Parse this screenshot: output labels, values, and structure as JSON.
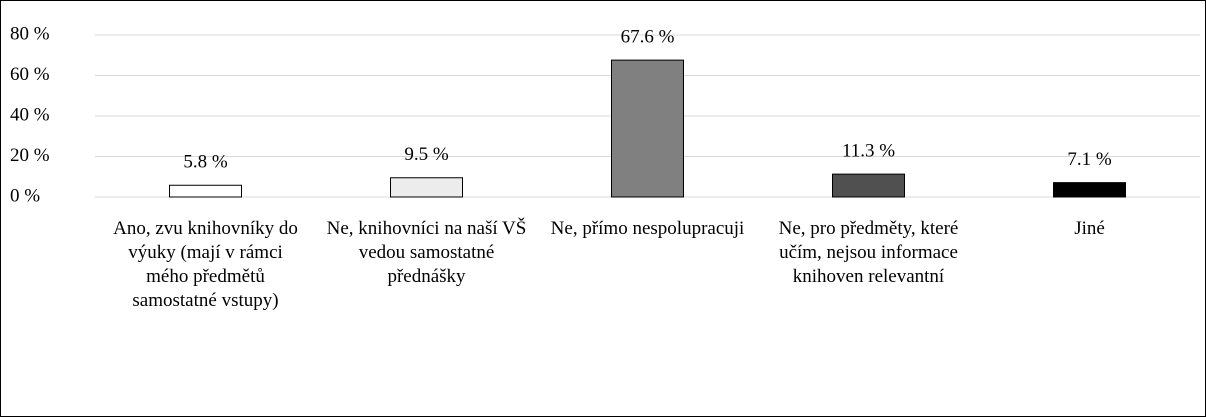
{
  "chart_data": {
    "type": "bar",
    "categories": [
      "Ano, zvu knihovníky do výuky (mají v rámci mého předmětů samostatné vstupy)",
      "Ne, knihovníci na naší VŠ vedou samostatné přednášky",
      "Ne, přímo nespolupracuji",
      "Ne, pro předměty, které učím, nejsou informace knihoven relevantní",
      "Jiné"
    ],
    "values": [
      5.8,
      9.5,
      67.6,
      11.3,
      7.1
    ],
    "value_labels": [
      "5.8 %",
      "9.5 %",
      "67.6 %",
      "11.3 %",
      "7.1 %"
    ],
    "colors": [
      "#ffffff",
      "#ececec",
      "#808080",
      "#505050",
      "#000000"
    ],
    "ylim": [
      0,
      80
    ],
    "yticks": [
      {
        "value": 0,
        "label": "0 %"
      },
      {
        "value": 20,
        "label": "20 %"
      },
      {
        "value": 40,
        "label": "40 %"
      },
      {
        "value": 60,
        "label": "60 %"
      },
      {
        "value": 80,
        "label": "80 %"
      }
    ],
    "grid": true
  }
}
